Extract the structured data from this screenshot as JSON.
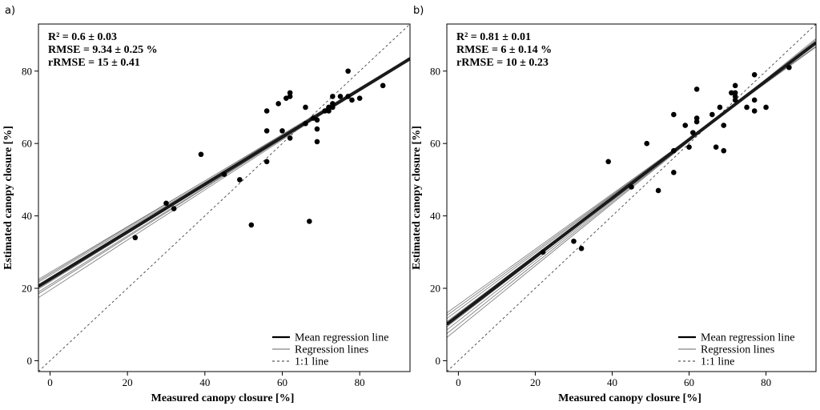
{
  "chart_data": [
    {
      "type": "scatter",
      "panel_label": "a)",
      "stats": [
        "R² = 0.6 ± 0.03",
        "RMSE = 9.34 ± 0.25 %",
        "rRMSE = 15 ± 0.41"
      ],
      "xlabel": "Measured canopy closure [%]",
      "ylabel": "Estimated canopy closure [%]",
      "xlim": [
        -3,
        93
      ],
      "ylim": [
        -3,
        93
      ],
      "xticks": [
        0,
        20,
        40,
        60,
        80
      ],
      "yticks": [
        0,
        20,
        40,
        60,
        80
      ],
      "legend": {
        "position": "bottom-right",
        "entries": [
          "Mean regression line",
          "Regression lines",
          "1:1 line"
        ]
      },
      "points": [
        [
          22,
          34
        ],
        [
          30,
          43.5
        ],
        [
          32,
          42
        ],
        [
          39,
          57
        ],
        [
          45,
          51.5
        ],
        [
          49,
          50
        ],
        [
          52,
          37.5
        ],
        [
          56,
          69
        ],
        [
          56,
          63.5
        ],
        [
          56,
          55
        ],
        [
          59,
          71
        ],
        [
          60,
          63.5
        ],
        [
          61,
          72.5
        ],
        [
          62,
          74
        ],
        [
          62,
          73
        ],
        [
          62,
          61.5
        ],
        [
          66,
          70
        ],
        [
          66,
          65.5
        ],
        [
          67,
          38.5
        ],
        [
          68,
          67
        ],
        [
          69,
          66.5
        ],
        [
          69,
          64
        ],
        [
          69,
          60.5
        ],
        [
          71,
          69
        ],
        [
          72,
          69
        ],
        [
          72,
          70
        ],
        [
          73,
          73
        ],
        [
          73,
          71
        ],
        [
          73,
          70
        ],
        [
          75,
          73
        ],
        [
          77,
          80
        ],
        [
          77,
          73
        ],
        [
          78,
          72
        ],
        [
          80,
          72.5
        ],
        [
          86,
          76
        ]
      ],
      "mean_regression": {
        "intercept": 22.5,
        "slope": 0.655
      },
      "regression_lines": [
        {
          "intercept": 19.5,
          "slope": 0.692
        },
        {
          "intercept": 20.5,
          "slope": 0.68
        },
        {
          "intercept": 21.0,
          "slope": 0.673
        },
        {
          "intercept": 21.8,
          "slope": 0.664
        },
        {
          "intercept": 23.0,
          "slope": 0.649
        },
        {
          "intercept": 23.6,
          "slope": 0.642
        },
        {
          "intercept": 24.4,
          "slope": 0.632
        },
        {
          "intercept": 24.0,
          "slope": 0.642
        }
      ]
    },
    {
      "type": "scatter",
      "panel_label": "b)",
      "stats": [
        "R² = 0.81 ± 0.01",
        "RMSE = 6 ± 0.14 %",
        "rRMSE = 10 ± 0.23"
      ],
      "xlabel": "Measured canopy closure [%]",
      "ylabel": "Estimated canopy closure [%]",
      "xlim": [
        -3,
        93
      ],
      "ylim": [
        -3,
        93
      ],
      "xticks": [
        0,
        20,
        40,
        60,
        80
      ],
      "yticks": [
        0,
        20,
        40,
        60,
        80
      ],
      "legend": {
        "position": "bottom-right",
        "entries": [
          "Mean regression line",
          "Regression lines",
          "1:1 line"
        ]
      },
      "points": [
        [
          22,
          30
        ],
        [
          30,
          33
        ],
        [
          32,
          31
        ],
        [
          39,
          55
        ],
        [
          45,
          48
        ],
        [
          49,
          60
        ],
        [
          52,
          47
        ],
        [
          56,
          68
        ],
        [
          56,
          58
        ],
        [
          56,
          52
        ],
        [
          59,
          65
        ],
        [
          60,
          59
        ],
        [
          61,
          63
        ],
        [
          62,
          75
        ],
        [
          62,
          67
        ],
        [
          62,
          66
        ],
        [
          66,
          68
        ],
        [
          67,
          59
        ],
        [
          68,
          70
        ],
        [
          69,
          65
        ],
        [
          69,
          58
        ],
        [
          71,
          74
        ],
        [
          72,
          76
        ],
        [
          72,
          74
        ],
        [
          72,
          73
        ],
        [
          72,
          72
        ],
        [
          75,
          70
        ],
        [
          77,
          79
        ],
        [
          77,
          72
        ],
        [
          77,
          69
        ],
        [
          80,
          70
        ],
        [
          86,
          81
        ]
      ],
      "mean_regression": {
        "intercept": 12.5,
        "slope": 0.81
      },
      "regression_lines": [
        {
          "intercept": 9.0,
          "slope": 0.86
        },
        {
          "intercept": 10.0,
          "slope": 0.845
        },
        {
          "intercept": 11.0,
          "slope": 0.83
        },
        {
          "intercept": 11.8,
          "slope": 0.82
        },
        {
          "intercept": 13.2,
          "slope": 0.8
        },
        {
          "intercept": 14.0,
          "slope": 0.79
        },
        {
          "intercept": 14.8,
          "slope": 0.775
        },
        {
          "intercept": 15.5,
          "slope": 0.765
        }
      ]
    }
  ]
}
